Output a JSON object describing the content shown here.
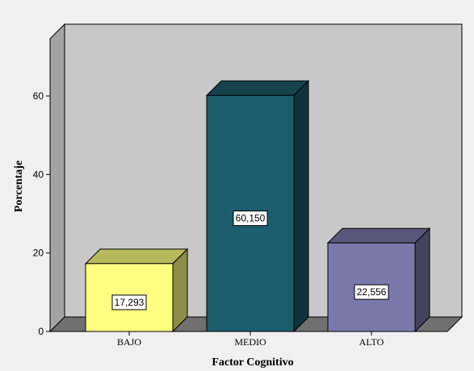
{
  "chart_data": {
    "type": "bar",
    "title": "",
    "xlabel": "Factor Cognitivo",
    "ylabel": "Porcentaje",
    "categories": [
      "BAJO",
      "MEDIO",
      "ALTO"
    ],
    "values": [
      17.293,
      60.15,
      22.556
    ],
    "value_labels": [
      "17,293",
      "60,150",
      "22,556"
    ],
    "ylim": [
      0,
      60
    ],
    "yticks": [
      0,
      20,
      40,
      60
    ],
    "colors": [
      "#ffff80",
      "#1c5d6d",
      "#7b79ab"
    ],
    "grid": false,
    "legend": "none",
    "style": "3d"
  }
}
